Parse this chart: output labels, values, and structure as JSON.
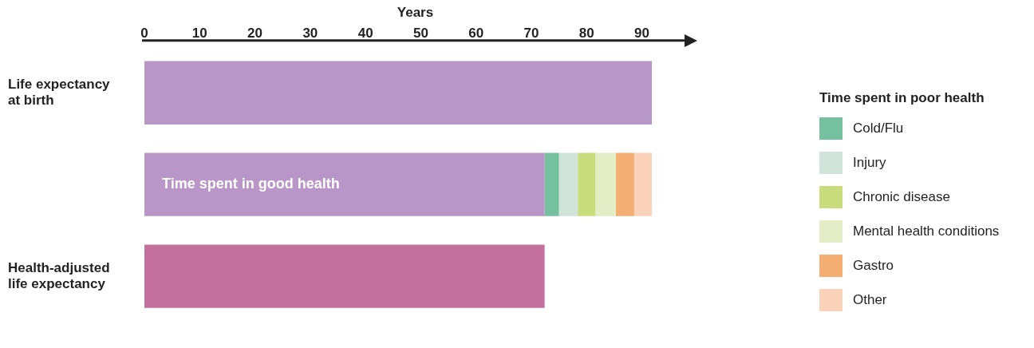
{
  "chart_data": {
    "type": "bar",
    "orientation": "horizontal",
    "stacked": true,
    "xlabel": "Years",
    "legend_title": "Time spent in poor health",
    "legend": "right",
    "grid": false,
    "categories": [
      "Life expectancy at birth",
      null,
      "Health-adjusted life expectancy"
    ],
    "xlim": [
      0,
      98
    ],
    "xticks": [
      0,
      10,
      20,
      30,
      40,
      50,
      60,
      70,
      80,
      90
    ],
    "series": [
      {
        "color": "#b996c8",
        "values": [
          91.8,
          null,
          null
        ]
      },
      {
        "name": "Time spent in good health",
        "color": "#b996c8",
        "values": [
          null,
          72.4,
          null
        ]
      },
      {
        "name": "Cold/Flu",
        "color": "#74c09f",
        "values": [
          null,
          2.6,
          null
        ]
      },
      {
        "name": "Injury",
        "color": "#cfe3d9",
        "values": [
          null,
          3.4,
          null
        ]
      },
      {
        "name": "Chronic disease",
        "color": "#c9dc7b",
        "values": [
          null,
          3.2,
          null
        ]
      },
      {
        "name": "Mental health conditions",
        "color": "#e3eec6",
        "values": [
          null,
          3.7,
          null
        ]
      },
      {
        "name": "Gastro",
        "color": "#f5ae72",
        "values": [
          null,
          3.3,
          null
        ]
      },
      {
        "name": "Other",
        "color": "#fad2b9",
        "values": [
          null,
          3.2,
          null
        ]
      },
      {
        "color": "#c3709e",
        "values": [
          null,
          null,
          72.4
        ]
      }
    ]
  }
}
